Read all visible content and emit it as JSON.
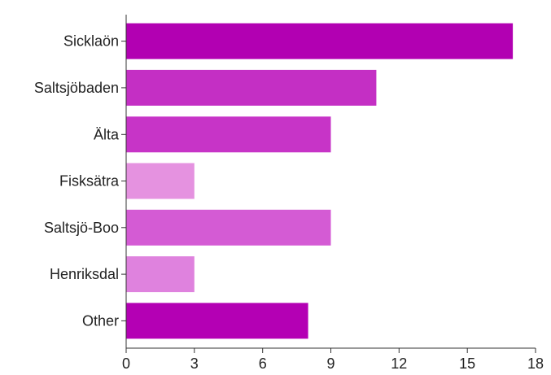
{
  "chart_data": {
    "type": "bar",
    "orientation": "horizontal",
    "categories": [
      "Sicklaön",
      "Saltsjöbaden",
      "Älta",
      "Fisksätra",
      "Saltsjö-Boo",
      "Henriksdal",
      "Other"
    ],
    "values": [
      17,
      11,
      9,
      3,
      9,
      3,
      8
    ],
    "colors": [
      "#b200b2",
      "#c42fc4",
      "#c734c7",
      "#e592e0",
      "#d45bd4",
      "#df82de",
      "#b400b4"
    ],
    "xlim": [
      0,
      18
    ],
    "xticks": [
      0,
      3,
      6,
      9,
      12,
      15,
      18
    ],
    "grid": false,
    "title": "",
    "xlabel": "",
    "ylabel": ""
  }
}
